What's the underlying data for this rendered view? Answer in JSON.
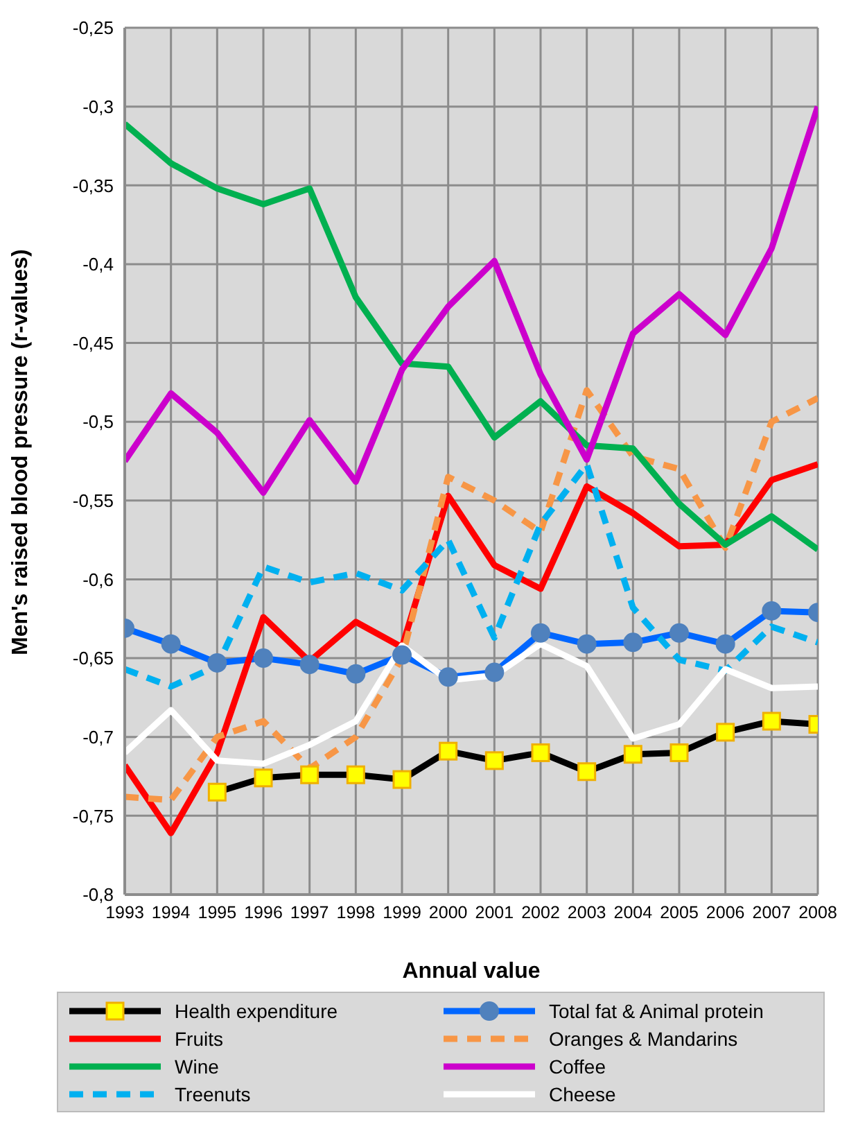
{
  "chart_data": {
    "type": "line",
    "xlabel": "Annual value",
    "ylabel": "Men's raised blood pressure (r-values)",
    "categories": [
      "1993",
      "1994",
      "1995",
      "1996",
      "1997",
      "1998",
      "1999",
      "2000",
      "2001",
      "2002",
      "2003",
      "2004",
      "2005",
      "2006",
      "2007",
      "2008"
    ],
    "ylim": [
      -0.8,
      -0.25
    ],
    "yticks": [
      {
        "value": -0.8,
        "label": "-0,8"
      },
      {
        "value": -0.75,
        "label": "-0,75"
      },
      {
        "value": -0.7,
        "label": "-0,7"
      },
      {
        "value": -0.65,
        "label": "-0,65"
      },
      {
        "value": -0.6,
        "label": "-0,6"
      },
      {
        "value": -0.55,
        "label": "-0,55"
      },
      {
        "value": -0.5,
        "label": "-0,5"
      },
      {
        "value": -0.45,
        "label": "-0,45"
      },
      {
        "value": -0.4,
        "label": "-0,4"
      },
      {
        "value": -0.35,
        "label": "-0,35"
      },
      {
        "value": -0.3,
        "label": "-0,3"
      },
      {
        "value": -0.25,
        "label": "-0,25"
      }
    ],
    "grid": true,
    "legend": "bottom",
    "series": [
      {
        "name": "Health expenditure",
        "color": "#000000",
        "marker": "square",
        "line_style": "solid",
        "values": [
          null,
          null,
          -0.735,
          -0.726,
          -0.724,
          -0.724,
          -0.727,
          -0.709,
          -0.715,
          -0.71,
          -0.722,
          -0.711,
          -0.71,
          -0.697,
          -0.69,
          -0.692
        ]
      },
      {
        "name": "Total fat & Animal protein",
        "color": "#0066ff",
        "marker": "circle",
        "line_style": "solid",
        "values": [
          -0.631,
          -0.641,
          -0.653,
          -0.65,
          -0.654,
          -0.66,
          -0.648,
          -0.662,
          -0.659,
          -0.634,
          -0.641,
          -0.64,
          -0.634,
          -0.641,
          -0.62,
          -0.621
        ]
      },
      {
        "name": "Fruits",
        "color": "#ff0000",
        "marker": "none",
        "line_style": "solid",
        "values": [
          -0.718,
          -0.761,
          -0.71,
          -0.624,
          -0.652,
          -0.627,
          -0.643,
          -0.547,
          -0.591,
          -0.606,
          -0.541,
          -0.558,
          -0.579,
          -0.578,
          -0.537,
          -0.527
        ]
      },
      {
        "name": "Oranges & Mandarins",
        "color": "#f79646",
        "marker": "none",
        "line_style": "dashed",
        "values": [
          -0.738,
          -0.74,
          -0.7,
          -0.69,
          -0.72,
          -0.7,
          -0.65,
          -0.535,
          -0.55,
          -0.57,
          -0.48,
          -0.522,
          -0.53,
          -0.58,
          -0.5,
          -0.485
        ]
      },
      {
        "name": "Wine",
        "color": "#00b050",
        "marker": "none",
        "line_style": "solid",
        "values": [
          -0.311,
          -0.336,
          -0.352,
          -0.362,
          -0.352,
          -0.421,
          -0.463,
          -0.465,
          -0.51,
          -0.487,
          -0.515,
          -0.517,
          -0.552,
          -0.578,
          -0.56,
          -0.581
        ]
      },
      {
        "name": "Coffee",
        "color": "#cc00cc",
        "marker": "none",
        "line_style": "solid",
        "values": [
          -0.525,
          -0.482,
          -0.507,
          -0.545,
          -0.499,
          -0.538,
          -0.467,
          -0.427,
          -0.398,
          -0.47,
          -0.524,
          -0.444,
          -0.419,
          -0.445,
          -0.39,
          -0.3
        ]
      },
      {
        "name": "Treenuts",
        "color": "#00b0f0",
        "marker": "none",
        "line_style": "dashed",
        "values": [
          -0.657,
          -0.668,
          -0.655,
          -0.592,
          -0.602,
          -0.596,
          -0.607,
          -0.575,
          -0.637,
          -0.565,
          -0.527,
          -0.618,
          -0.651,
          -0.658,
          -0.63,
          -0.64
        ]
      },
      {
        "name": "Cheese",
        "color": "#ffffff",
        "marker": "none",
        "line_style": "solid",
        "values": [
          -0.71,
          -0.683,
          -0.715,
          -0.717,
          -0.705,
          -0.69,
          -0.642,
          -0.664,
          -0.661,
          -0.641,
          -0.655,
          -0.701,
          -0.692,
          -0.657,
          -0.669,
          -0.668
        ]
      }
    ]
  }
}
